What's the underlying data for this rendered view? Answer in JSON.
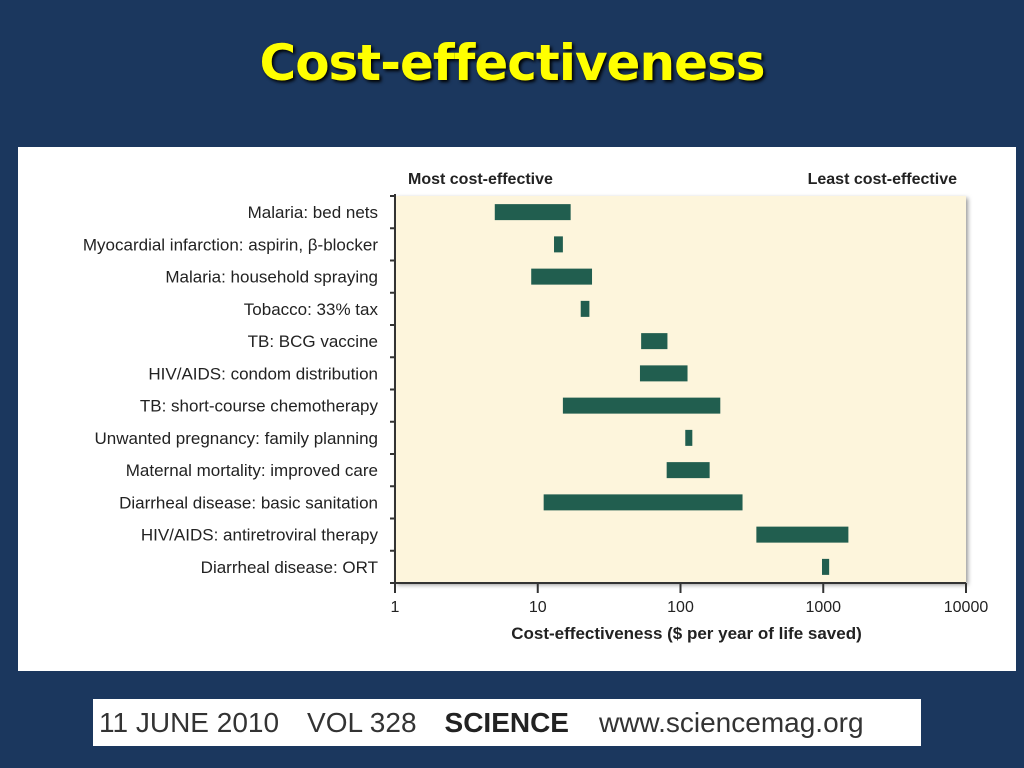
{
  "slide_title": "Cost-effectiveness",
  "footer": {
    "date": "11 JUNE 2010",
    "volume": "VOL 328",
    "journal": "SCIENCE",
    "url": "www.sciencemag.org"
  },
  "colors": {
    "background": "#1b375e",
    "title": "#ffff00",
    "bar": "#215e4f",
    "plot_bg": "#fdf5dc"
  },
  "chart_data": {
    "type": "bar",
    "orientation": "horizontal-range",
    "header_left": "Most cost-effective",
    "header_right": "Least cost-effective",
    "xlabel": "Cost-effectiveness ($ per year of life saved)",
    "xscale": "log",
    "xlim": [
      1,
      10000
    ],
    "xticks": [
      "1",
      "10",
      "100",
      "1000",
      "10000"
    ],
    "categories": [
      "Malaria: bed nets",
      "Myocardial infarction: aspirin, β-blocker",
      "Malaria: household spraying",
      "Tobacco: 33% tax",
      "TB: BCG vaccine",
      "HIV/AIDS: condom distribution",
      "TB: short-course chemotherapy",
      "Unwanted pregnancy: family planning",
      "Maternal mortality: improved care",
      "Diarrheal disease: basic sanitation",
      "HIV/AIDS: antiretroviral therapy",
      "Diarrheal disease: ORT"
    ],
    "ranges": [
      [
        5,
        17
      ],
      [
        13,
        15
      ],
      [
        9,
        24
      ],
      [
        20,
        23
      ],
      [
        53,
        81
      ],
      [
        52,
        112
      ],
      [
        15,
        190
      ],
      [
        108,
        121
      ],
      [
        80,
        160
      ],
      [
        11,
        272
      ],
      [
        340,
        1500
      ],
      [
        980,
        1100
      ]
    ]
  }
}
